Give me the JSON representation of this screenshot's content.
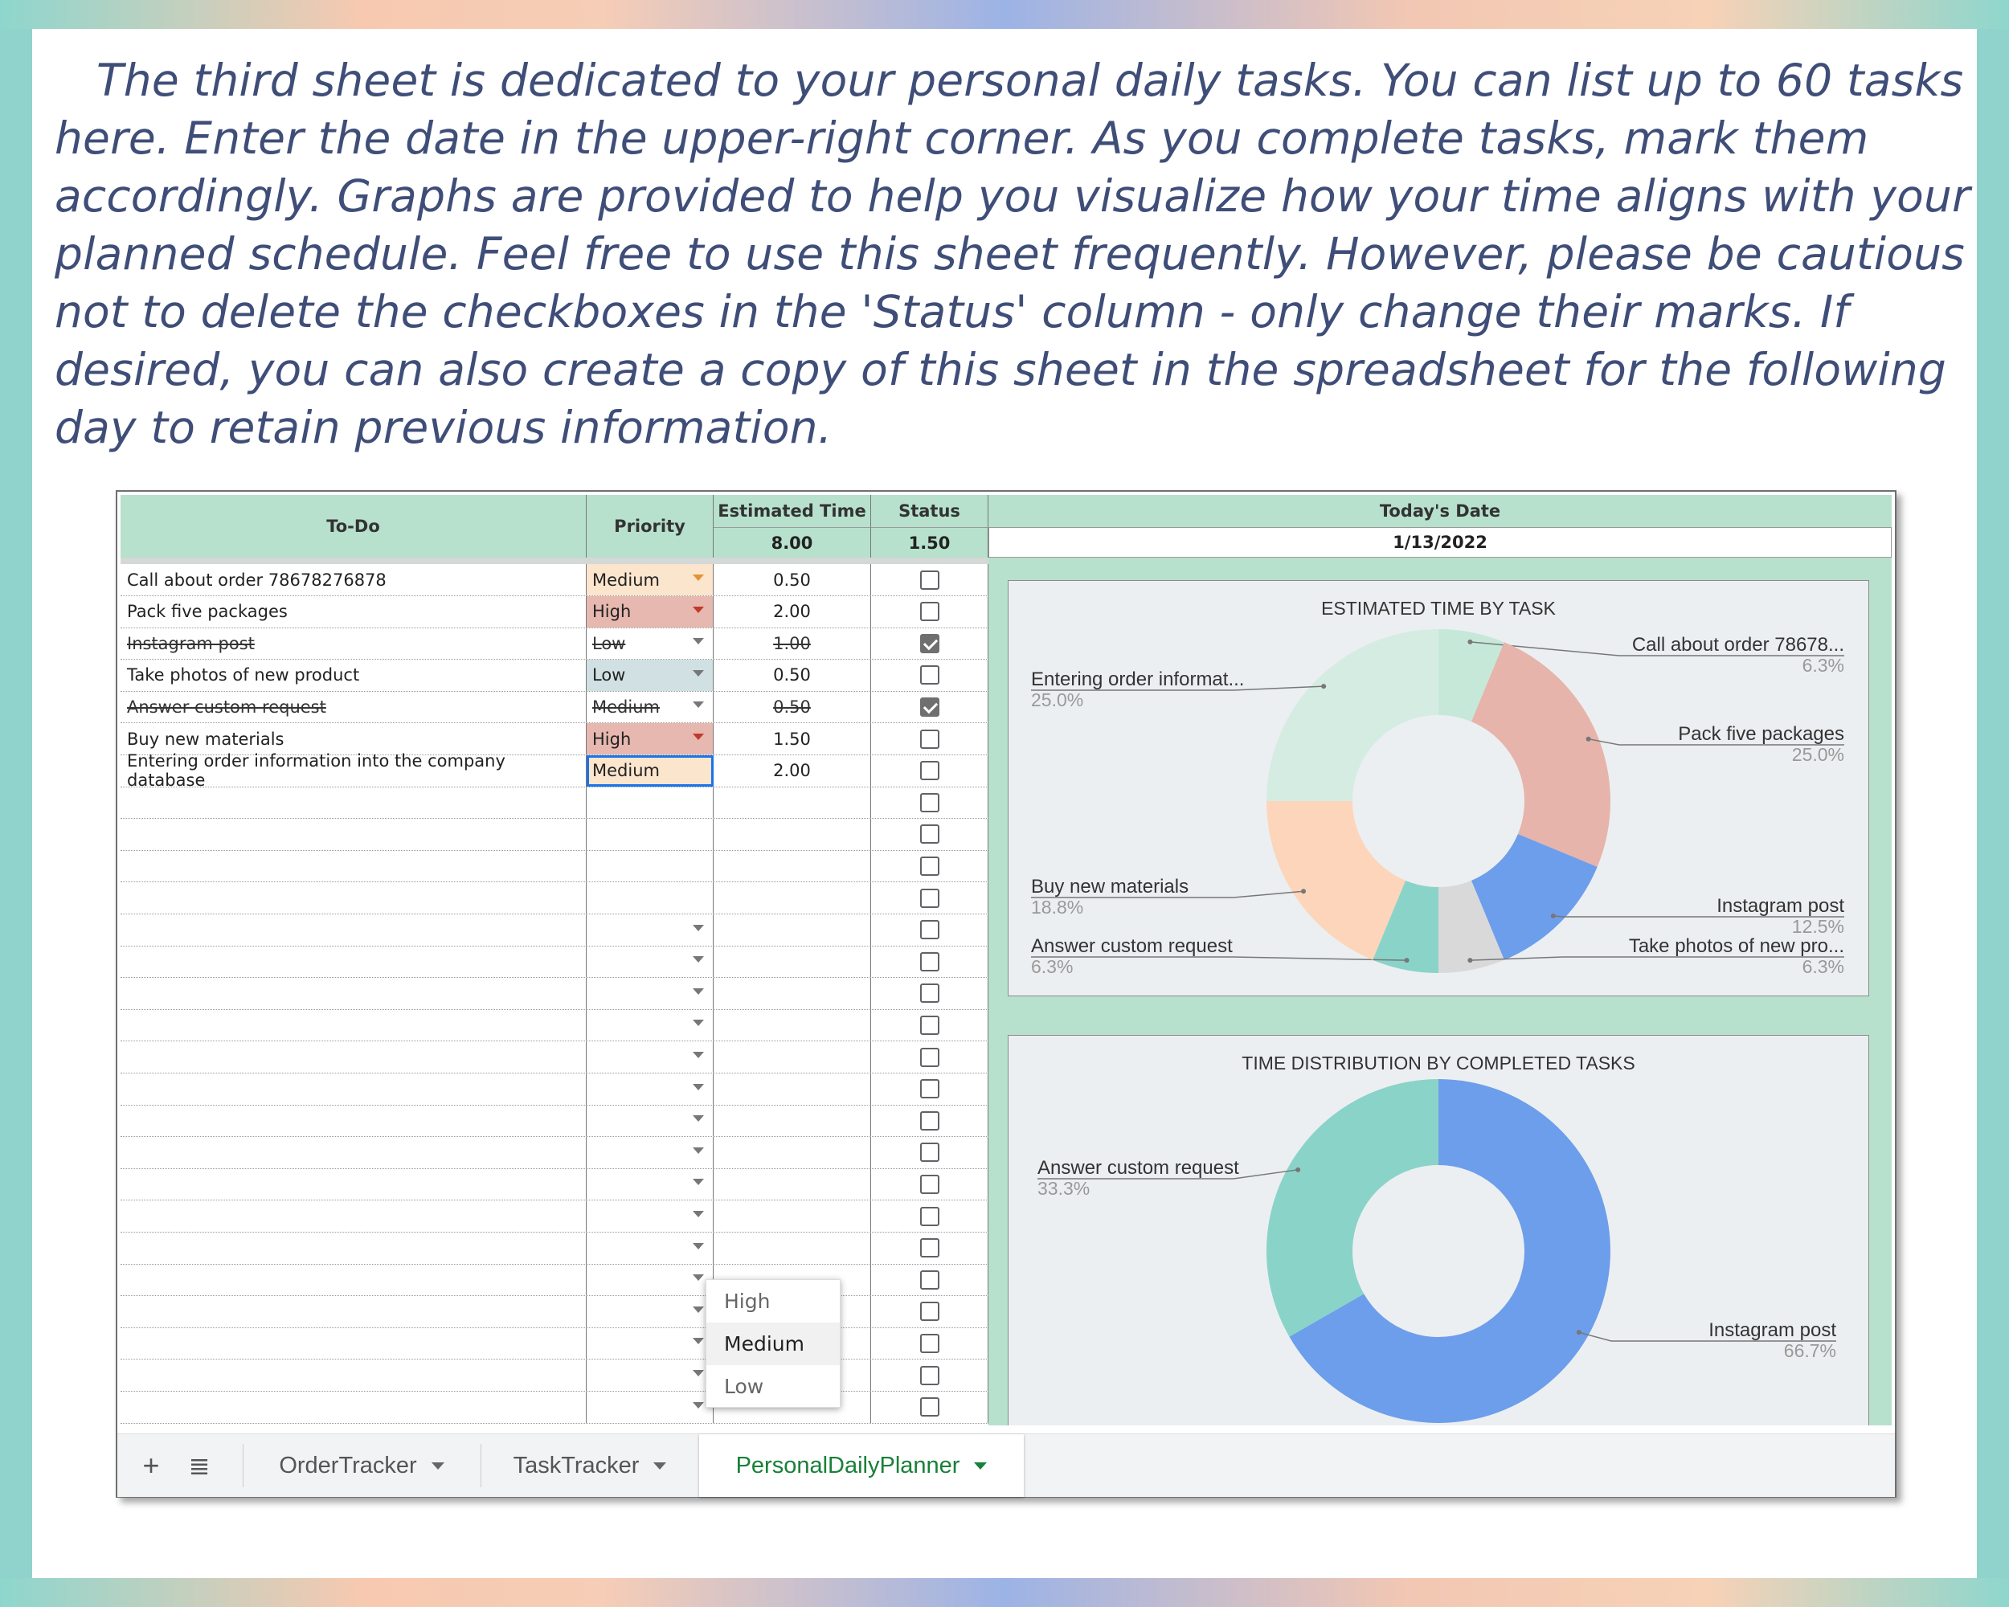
{
  "intro_text": "The third sheet is dedicated to your personal daily tasks. You can list up to 60 tasks here. Enter the date in the upper-right corner. As you complete tasks, mark them accordingly. Graphs are provided to help you visualize how your time aligns with your planned schedule. Feel free to use this sheet frequently. However, please be cautious not to delete the checkboxes in the 'Status' column - only change their marks. If desired, you can also create a copy of this sheet in the spreadsheet for the following day to retain previous information.",
  "headers": {
    "todo": "To-Do",
    "priority": "Priority",
    "estimated_time": "Estimated Time",
    "status": "Status",
    "todays_date": "Today's Date",
    "estimated_total": "8.00",
    "status_total": "1.50",
    "date_value": "1/13/2022"
  },
  "colors": {
    "header_green": "#b7e1cd",
    "high": "#e6b8af",
    "medium": "#fce5cd",
    "low": "#d0e0e3",
    "text_blue": "#3f4e78",
    "active_tab": "#188038"
  },
  "tasks": [
    {
      "todo": "Call about order 78678276878",
      "priority": "Medium",
      "estimated": "0.50",
      "done": false
    },
    {
      "todo": "Pack five packages",
      "priority": "High",
      "estimated": "2.00",
      "done": false
    },
    {
      "todo": "Instagram post",
      "priority": "Low",
      "estimated": "1.00",
      "done": true
    },
    {
      "todo": "Take photos of new product",
      "priority": "Low",
      "estimated": "0.50",
      "done": false
    },
    {
      "todo": "Answer custom request",
      "priority": "Medium",
      "estimated": "0.50",
      "done": true
    },
    {
      "todo": "Buy new materials",
      "priority": "High",
      "estimated": "1.50",
      "done": false
    },
    {
      "todo": "Entering order information into the company database",
      "priority": "Medium",
      "estimated": "2.00",
      "done": false
    }
  ],
  "dropdown": {
    "options": [
      "High",
      "Medium",
      "Low"
    ],
    "selected": "Medium"
  },
  "chart_data": [
    {
      "type": "pie",
      "title": "ESTIMATED TIME BY TASK",
      "donut": true,
      "slices": [
        {
          "label": "Call about order 78678...",
          "pct_label": "6.3%",
          "value": 6.25,
          "color": "#c6e8d9"
        },
        {
          "label": "Pack five packages",
          "pct_label": "25.0%",
          "value": 25.0,
          "color": "#e6b4ab"
        },
        {
          "label": "Instagram post",
          "pct_label": "12.5%",
          "value": 12.5,
          "color": "#6d9eeb"
        },
        {
          "label": "Take photos of new pro...",
          "pct_label": "6.3%",
          "value": 6.25,
          "color": "#d9d9d9"
        },
        {
          "label": "Answer custom request",
          "pct_label": "6.3%",
          "value": 6.25,
          "color": "#8ad3c9"
        },
        {
          "label": "Buy new materials",
          "pct_label": "18.8%",
          "value": 18.75,
          "color": "#fdd5bb"
        },
        {
          "label": "Entering order informat...",
          "pct_label": "25.0%",
          "value": 25.0,
          "color": "#d5ece2"
        }
      ]
    },
    {
      "type": "pie",
      "title": "TIME DISTRIBUTION BY COMPLETED TASKS",
      "donut": true,
      "slices": [
        {
          "label": "Instagram post",
          "pct_label": "66.7%",
          "value": 66.7,
          "color": "#6d9eeb"
        },
        {
          "label": "Answer custom request",
          "pct_label": "33.3%",
          "value": 33.3,
          "color": "#8ad3c9"
        }
      ]
    }
  ],
  "tabs": [
    {
      "label": "OrderTracker"
    },
    {
      "label": "TaskTracker"
    },
    {
      "label": "PersonalDailyPlanner"
    }
  ],
  "icons": {
    "add": "plus-icon",
    "all_sheets": "list-icon"
  }
}
